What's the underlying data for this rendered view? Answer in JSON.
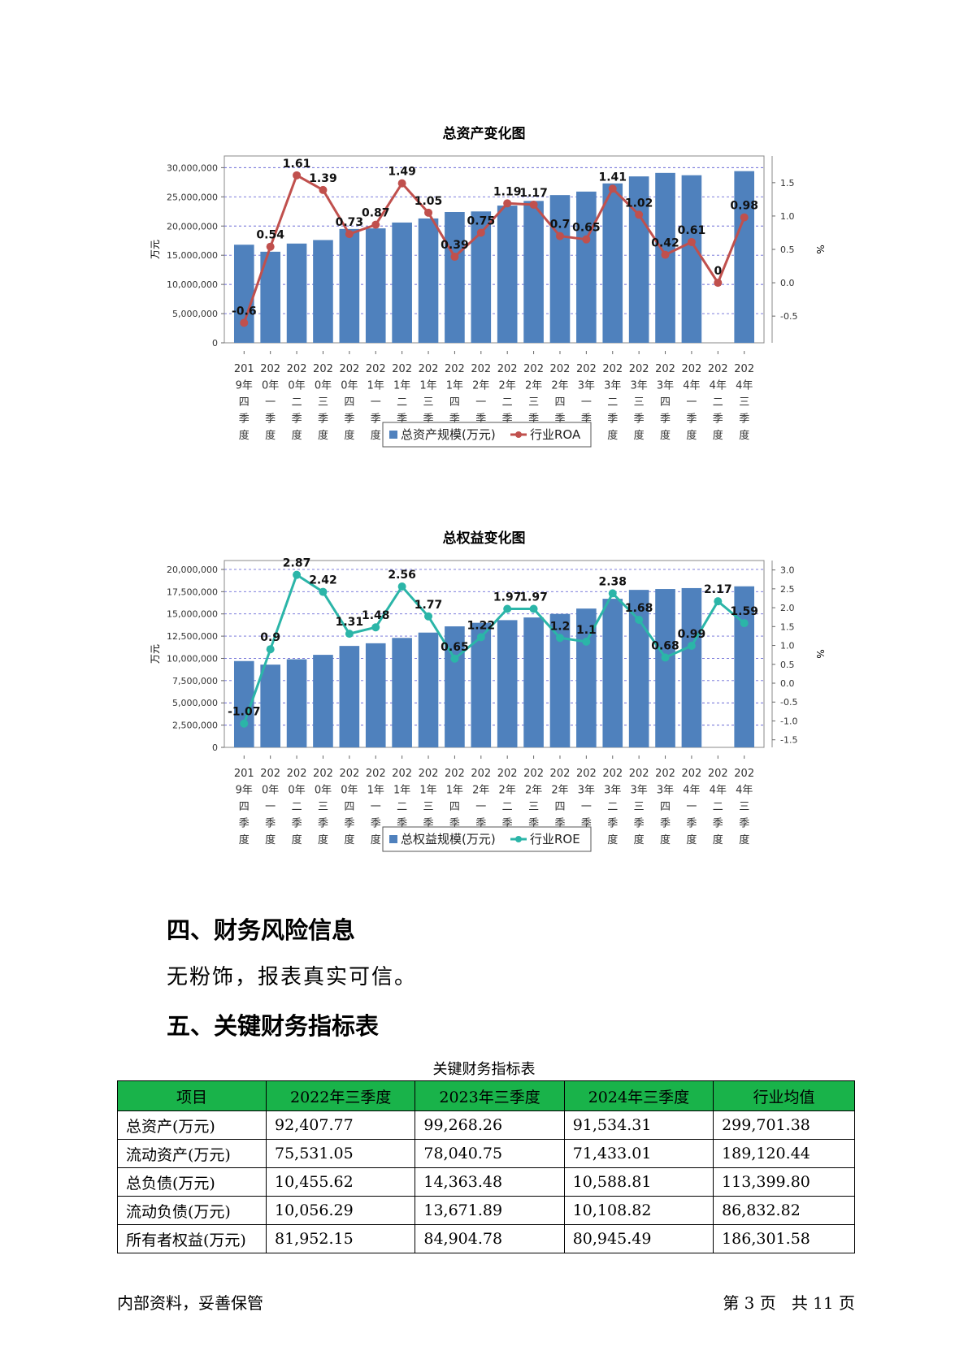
{
  "charts": [
    {
      "title": "总资产变化图",
      "left_axis_label": "万元",
      "right_axis_label": "%",
      "bar_color": "#4f81bd",
      "line_color": "#c0504d",
      "legend": {
        "bar": "总资产规模(万元)",
        "line": "行业ROA"
      }
    },
    {
      "title": "总权益变化图",
      "left_axis_label": "万元",
      "right_axis_label": "%",
      "bar_color": "#4f81bd",
      "line_color": "#2bb5a8",
      "legend": {
        "bar": "总权益规模(万元)",
        "line": "行业ROE"
      }
    }
  ],
  "chart_data": [
    {
      "type": "bar",
      "title": "总资产变化图",
      "categories": [
        "2019年四季度",
        "2020年一季度",
        "2020年二季度",
        "2020年三季度",
        "2020年四季度",
        "2021年一季度",
        "2021年二季度",
        "2021年三季度",
        "2021年四季度",
        "2022年一季度",
        "2022年二季度",
        "2022年三季度",
        "2022年四季度",
        "2023年一季度",
        "2023年二季度",
        "2023年三季度",
        "2023年四季度",
        "2024年一季度",
        "2024年二季度",
        "2024年三季度"
      ],
      "category_lines": [
        [
          "201",
          "9年",
          "四",
          "季",
          "度"
        ],
        [
          "202",
          "0年",
          "一",
          "季",
          "度"
        ],
        [
          "202",
          "0年",
          "二",
          "季",
          "度"
        ],
        [
          "202",
          "0年",
          "三",
          "季",
          "度"
        ],
        [
          "202",
          "0年",
          "四",
          "季",
          "度"
        ],
        [
          "202",
          "1年",
          "一",
          "季",
          "度"
        ],
        [
          "202",
          "1年",
          "二",
          "季",
          "度"
        ],
        [
          "202",
          "1年",
          "三",
          "季",
          "度"
        ],
        [
          "202",
          "1年",
          "四",
          "季",
          "度"
        ],
        [
          "202",
          "2年",
          "一",
          "季",
          "度"
        ],
        [
          "202",
          "2年",
          "二",
          "季",
          "度"
        ],
        [
          "202",
          "2年",
          "三",
          "季",
          "度"
        ],
        [
          "202",
          "2年",
          "四",
          "季",
          "度"
        ],
        [
          "202",
          "3年",
          "一",
          "季",
          "度"
        ],
        [
          "202",
          "3年",
          "二",
          "季",
          "度"
        ],
        [
          "202",
          "3年",
          "三",
          "季",
          "度"
        ],
        [
          "202",
          "3年",
          "四",
          "季",
          "度"
        ],
        [
          "202",
          "4年",
          "一",
          "季",
          "度"
        ],
        [
          "202",
          "4年",
          "二",
          "季",
          "度"
        ],
        [
          "202",
          "4年",
          "三",
          "季",
          "度"
        ]
      ],
      "series": [
        {
          "name": "总资产规模(万元)",
          "axis": "left",
          "values": [
            16800000,
            15600000,
            17000000,
            17600000,
            19500000,
            19600000,
            20600000,
            21300000,
            22400000,
            22500000,
            23500000,
            24300000,
            25300000,
            25900000,
            27300000,
            28500000,
            29100000,
            28700000,
            null,
            29400000
          ]
        },
        {
          "name": "行业ROA",
          "axis": "right",
          "values": [
            -0.6,
            0.54,
            1.61,
            1.39,
            0.73,
            0.87,
            1.49,
            1.05,
            0.39,
            0.75,
            1.19,
            1.17,
            0.7,
            0.65,
            1.41,
            1.02,
            0.42,
            0.61,
            0,
            0.98
          ]
        }
      ],
      "point_labels": [
        "-0.6",
        "0.54",
        "1.61",
        "1.39",
        "0.73",
        "0.87",
        "1.49",
        "1.05",
        "0.39",
        "0.75",
        "1.19",
        "1.17",
        "0.7",
        "0.65",
        "1.41",
        "1.02",
        "0.42",
        "0.61",
        "0",
        "0.98"
      ],
      "left_ticks": [
        "0",
        "5,000,000",
        "10,000,000",
        "15,000,000",
        "20,000,000",
        "25,000,000",
        "30,000,000"
      ],
      "right_ticks": [
        "-0.5",
        "0.0",
        "0.5",
        "1.0",
        "1.5"
      ],
      "ylim_left": [
        0,
        32000000
      ],
      "ylim_right": [
        -0.9,
        1.9
      ],
      "ylabel_left": "万元",
      "ylabel_right": "%",
      "grid": true,
      "legend_position": "bottom"
    },
    {
      "type": "bar",
      "title": "总权益变化图",
      "categories": [
        "2019年四季度",
        "2020年一季度",
        "2020年二季度",
        "2020年三季度",
        "2020年四季度",
        "2021年一季度",
        "2021年二季度",
        "2021年三季度",
        "2021年四季度",
        "2022年一季度",
        "2022年二季度",
        "2022年三季度",
        "2022年四季度",
        "2023年一季度",
        "2023年二季度",
        "2023年三季度",
        "2023年四季度",
        "2024年一季度",
        "2024年二季度",
        "2024年三季度"
      ],
      "category_lines": [
        [
          "201",
          "9年",
          "四",
          "季",
          "度"
        ],
        [
          "202",
          "0年",
          "一",
          "季",
          "度"
        ],
        [
          "202",
          "0年",
          "二",
          "季",
          "度"
        ],
        [
          "202",
          "0年",
          "三",
          "季",
          "度"
        ],
        [
          "202",
          "0年",
          "四",
          "季",
          "度"
        ],
        [
          "202",
          "1年",
          "一",
          "季",
          "度"
        ],
        [
          "202",
          "1年",
          "二",
          "季",
          "度"
        ],
        [
          "202",
          "1年",
          "三",
          "季",
          "度"
        ],
        [
          "202",
          "1年",
          "四",
          "季",
          "度"
        ],
        [
          "202",
          "2年",
          "一",
          "季",
          "度"
        ],
        [
          "202",
          "2年",
          "二",
          "季",
          "度"
        ],
        [
          "202",
          "2年",
          "三",
          "季",
          "度"
        ],
        [
          "202",
          "2年",
          "四",
          "季",
          "度"
        ],
        [
          "202",
          "3年",
          "一",
          "季",
          "度"
        ],
        [
          "202",
          "3年",
          "二",
          "季",
          "度"
        ],
        [
          "202",
          "3年",
          "三",
          "季",
          "度"
        ],
        [
          "202",
          "3年",
          "四",
          "季",
          "度"
        ],
        [
          "202",
          "4年",
          "一",
          "季",
          "度"
        ],
        [
          "202",
          "4年",
          "二",
          "季",
          "度"
        ],
        [
          "202",
          "4年",
          "三",
          "季",
          "度"
        ]
      ],
      "series": [
        {
          "name": "总权益规模(万元)",
          "axis": "left",
          "values": [
            9700000,
            9300000,
            9900000,
            10400000,
            11400000,
            11700000,
            12300000,
            12900000,
            13600000,
            14000000,
            14300000,
            14600000,
            15000000,
            15600000,
            16700000,
            17700000,
            17800000,
            17900000,
            null,
            18100000
          ]
        },
        {
          "name": "行业ROE",
          "axis": "right",
          "values": [
            -1.07,
            0.9,
            2.87,
            2.42,
            1.31,
            1.48,
            2.56,
            1.77,
            0.65,
            1.22,
            1.97,
            1.97,
            1.2,
            1.1,
            2.38,
            1.68,
            0.68,
            0.99,
            2.17,
            1.59
          ]
        }
      ],
      "point_labels": [
        "-1.07",
        "0.9",
        "2.87",
        "2.42",
        "1.31",
        "1.48",
        "2.56",
        "1.77",
        "0.65",
        "1.22",
        "1.97",
        "1.97",
        "1.2",
        "1.1",
        "2.38",
        "1.68",
        "0.68",
        "0.99",
        "2.17",
        "1.59"
      ],
      "left_ticks": [
        "0",
        "2,500,000",
        "5,000,000",
        "7,500,000",
        "10,000,000",
        "12,500,000",
        "15,000,000",
        "17,500,000",
        "20,000,000"
      ],
      "right_ticks": [
        "-1.5",
        "-1.0",
        "-0.5",
        "0.0",
        "0.5",
        "1.0",
        "1.5",
        "2.0",
        "2.5",
        "3.0"
      ],
      "ylim_left": [
        0,
        21000000
      ],
      "ylim_right": [
        -1.7,
        3.25
      ],
      "ylabel_left": "万元",
      "ylabel_right": "%",
      "grid": true,
      "legend_position": "bottom"
    }
  ],
  "sections": {
    "risk_heading": "四、财务风险信息",
    "risk_text": "无粉饰，报表真实可信。",
    "kpi_heading": "五、关键财务指标表"
  },
  "table": {
    "caption": "关键财务指标表",
    "header_color": "#19b34a",
    "headers": [
      "项目",
      "2022年三季度",
      "2023年三季度",
      "2024年三季度",
      "行业均值"
    ],
    "rows": [
      [
        "总资产(万元)",
        "92,407.77",
        "99,268.26",
        "91,534.31",
        "299,701.38"
      ],
      [
        "流动资产(万元)",
        "75,531.05",
        "78,040.75",
        "71,433.01",
        "189,120.44"
      ],
      [
        "总负债(万元)",
        "10,455.62",
        "14,363.48",
        "10,588.81",
        "113,399.80"
      ],
      [
        "流动负债(万元)",
        "10,056.29",
        "13,671.89",
        "10,108.82",
        "86,832.82"
      ],
      [
        "所有者权益(万元)",
        "81,952.15",
        "84,904.78",
        "80,945.49",
        "186,301.58"
      ]
    ]
  },
  "footer": {
    "left": "内部资料，妥善保管",
    "right": "第 3 页   共 11 页"
  }
}
